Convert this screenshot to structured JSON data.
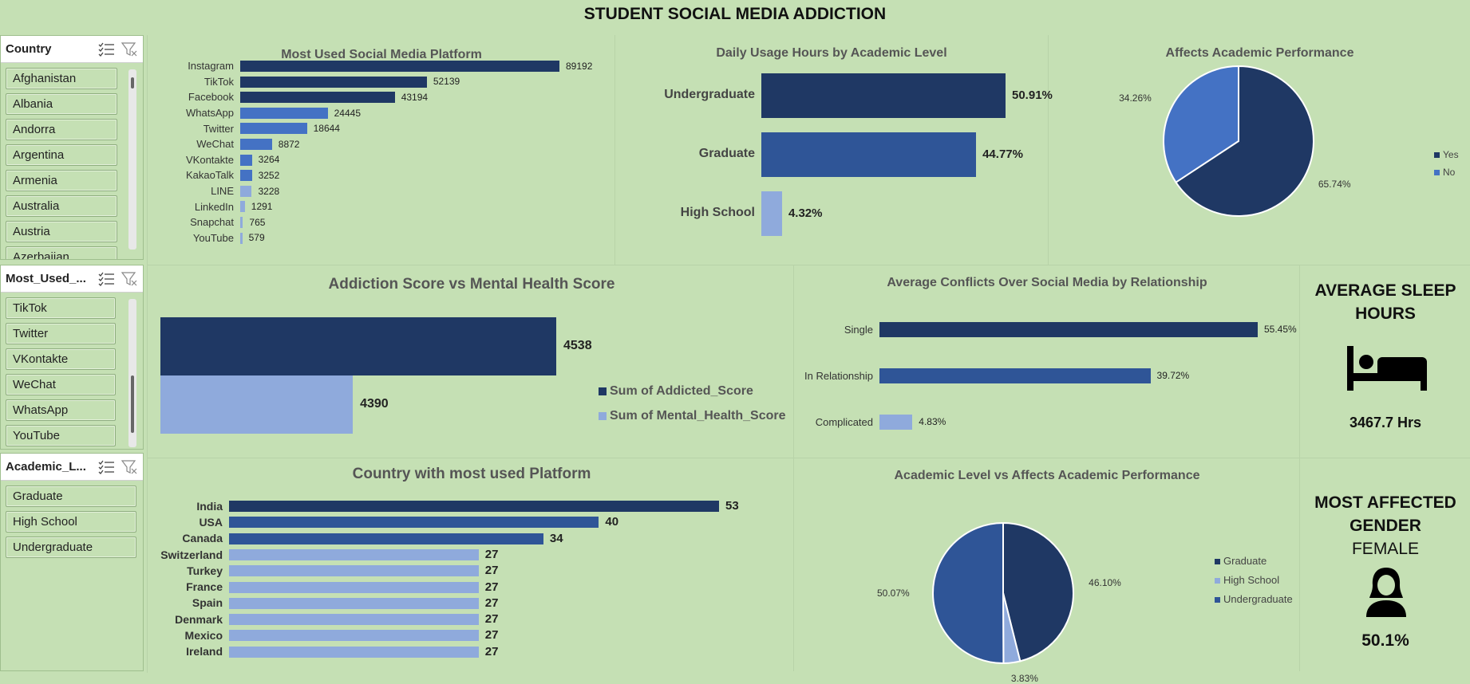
{
  "dashboard_title": "STUDENT SOCIAL MEDIA ADDICTION",
  "colors": {
    "background": "#c5e0b4",
    "dark": "#1f3864",
    "mid": "#2f5597",
    "medium": "#4472c4",
    "light": "#8faadc"
  },
  "slicers": [
    {
      "title": "Country",
      "items": [
        "Afghanistan",
        "Albania",
        "Andorra",
        "Argentina",
        "Armenia",
        "Australia",
        "Austria",
        "Azerbaijan"
      ],
      "icons": [
        "multi-select-icon",
        "clear-filter-icon"
      ]
    },
    {
      "title": "Most_Used_...",
      "items": [
        "TikTok",
        "Twitter",
        "VKontakte",
        "WeChat",
        "WhatsApp",
        "YouTube"
      ],
      "icons": [
        "multi-select-icon",
        "clear-filter-icon"
      ]
    },
    {
      "title": "Academic_L...",
      "items": [
        "Graduate",
        "High School",
        "Undergraduate"
      ],
      "icons": [
        "multi-select-icon",
        "clear-filter-icon"
      ]
    }
  ],
  "kpis": {
    "sleep": {
      "title_line1": "AVERAGE SLEEP",
      "title_line2": "HOURS",
      "value": "3467.7 Hrs",
      "icon": "bed-icon"
    },
    "gender": {
      "title_line1": "MOST AFFECTED",
      "title_line2": "GENDER",
      "subtitle": "FEMALE",
      "value": "50.1%",
      "icon": "female-user-icon"
    }
  },
  "chart_data": [
    {
      "id": "platform",
      "type": "bar",
      "orientation": "horizontal",
      "title": "Most Used Social Media Platform",
      "categories": [
        "Instagram",
        "TikTok",
        "Facebook",
        "WhatsApp",
        "Twitter",
        "WeChat",
        "VKontakte",
        "KakaoTalk",
        "LINE",
        "LinkedIn",
        "Snapchat",
        "YouTube"
      ],
      "values": [
        89192,
        52139,
        43194,
        24445,
        18644,
        8872,
        3264,
        3252,
        3228,
        1291,
        765,
        579
      ],
      "value_labels": [
        "89192",
        "52139",
        "43194",
        "24445",
        "18644",
        "8872",
        "3264",
        "3252",
        "3228",
        "1291",
        "765",
        "579"
      ],
      "bar_colors": [
        "#1f3864",
        "#1f3864",
        "#1f3864",
        "#4472c4",
        "#4472c4",
        "#4472c4",
        "#4472c4",
        "#4472c4",
        "#8faadc",
        "#8faadc",
        "#8faadc",
        "#8faadc"
      ]
    },
    {
      "id": "daily_usage",
      "type": "bar",
      "orientation": "horizontal",
      "title": "Daily Usage Hours by Academic Level",
      "categories": [
        "Undergraduate",
        "Graduate",
        "High School"
      ],
      "values": [
        50.91,
        44.77,
        4.32
      ],
      "value_labels": [
        "50.91%",
        "44.77%",
        "4.32%"
      ],
      "bar_colors": [
        "#1f3864",
        "#2f5597",
        "#8faadc"
      ]
    },
    {
      "id": "affects_perf",
      "type": "pie",
      "title": "Affects Academic Performance",
      "series": [
        {
          "name": "Yes",
          "value": 65.74,
          "label": "65.74%",
          "color": "#1f3864"
        },
        {
          "name": "No",
          "value": 34.26,
          "label": "34.26%",
          "color": "#4472c4"
        }
      ],
      "legend": "right"
    },
    {
      "id": "addiction_mental",
      "type": "bar",
      "orientation": "horizontal",
      "title": "Addiction Score vs Mental Health Score",
      "series": [
        {
          "name": "Sum of Addicted_Score",
          "value": 4538,
          "label": "4538",
          "color": "#1f3864"
        },
        {
          "name": "Sum of Mental_Health_Score",
          "value": 4390,
          "label": "4390",
          "color": "#8faadc"
        }
      ],
      "legend": "right"
    },
    {
      "id": "conflicts",
      "type": "bar",
      "orientation": "horizontal",
      "title": "Average Conflicts Over Social Media by Relationship",
      "categories": [
        "Single",
        "In Relationship",
        "Complicated"
      ],
      "values": [
        55.45,
        39.72,
        4.83
      ],
      "value_labels": [
        "55.45%",
        "39.72%",
        "4.83%"
      ],
      "bar_colors": [
        "#1f3864",
        "#2f5597",
        "#8faadc"
      ]
    },
    {
      "id": "country_platform",
      "type": "bar",
      "orientation": "horizontal",
      "title": "Country with most used Platform",
      "categories": [
        "India",
        "USA",
        "Canada",
        "Switzerland",
        "Turkey",
        "France",
        "Spain",
        "Denmark",
        "Mexico",
        "Ireland"
      ],
      "values": [
        53,
        40,
        34,
        27,
        27,
        27,
        27,
        27,
        27,
        27
      ],
      "value_labels": [
        "53",
        "40",
        "34",
        "27",
        "27",
        "27",
        "27",
        "27",
        "27",
        "27"
      ],
      "bar_colors": [
        "#1f3864",
        "#2f5597",
        "#2f5597",
        "#8faadc",
        "#8faadc",
        "#8faadc",
        "#8faadc",
        "#8faadc",
        "#8faadc",
        "#8faadc"
      ]
    },
    {
      "id": "academic_affects",
      "type": "pie",
      "title": "Academic Level vs Affects Academic Performance",
      "series": [
        {
          "name": "Graduate",
          "value": 46.1,
          "label": "46.10%",
          "color": "#1f3864"
        },
        {
          "name": "High School",
          "value": 3.83,
          "label": "3.83%",
          "color": "#8faadc"
        },
        {
          "name": "Undergraduate",
          "value": 50.07,
          "label": "50.07%",
          "color": "#2f5597"
        }
      ],
      "legend": "right"
    }
  ]
}
